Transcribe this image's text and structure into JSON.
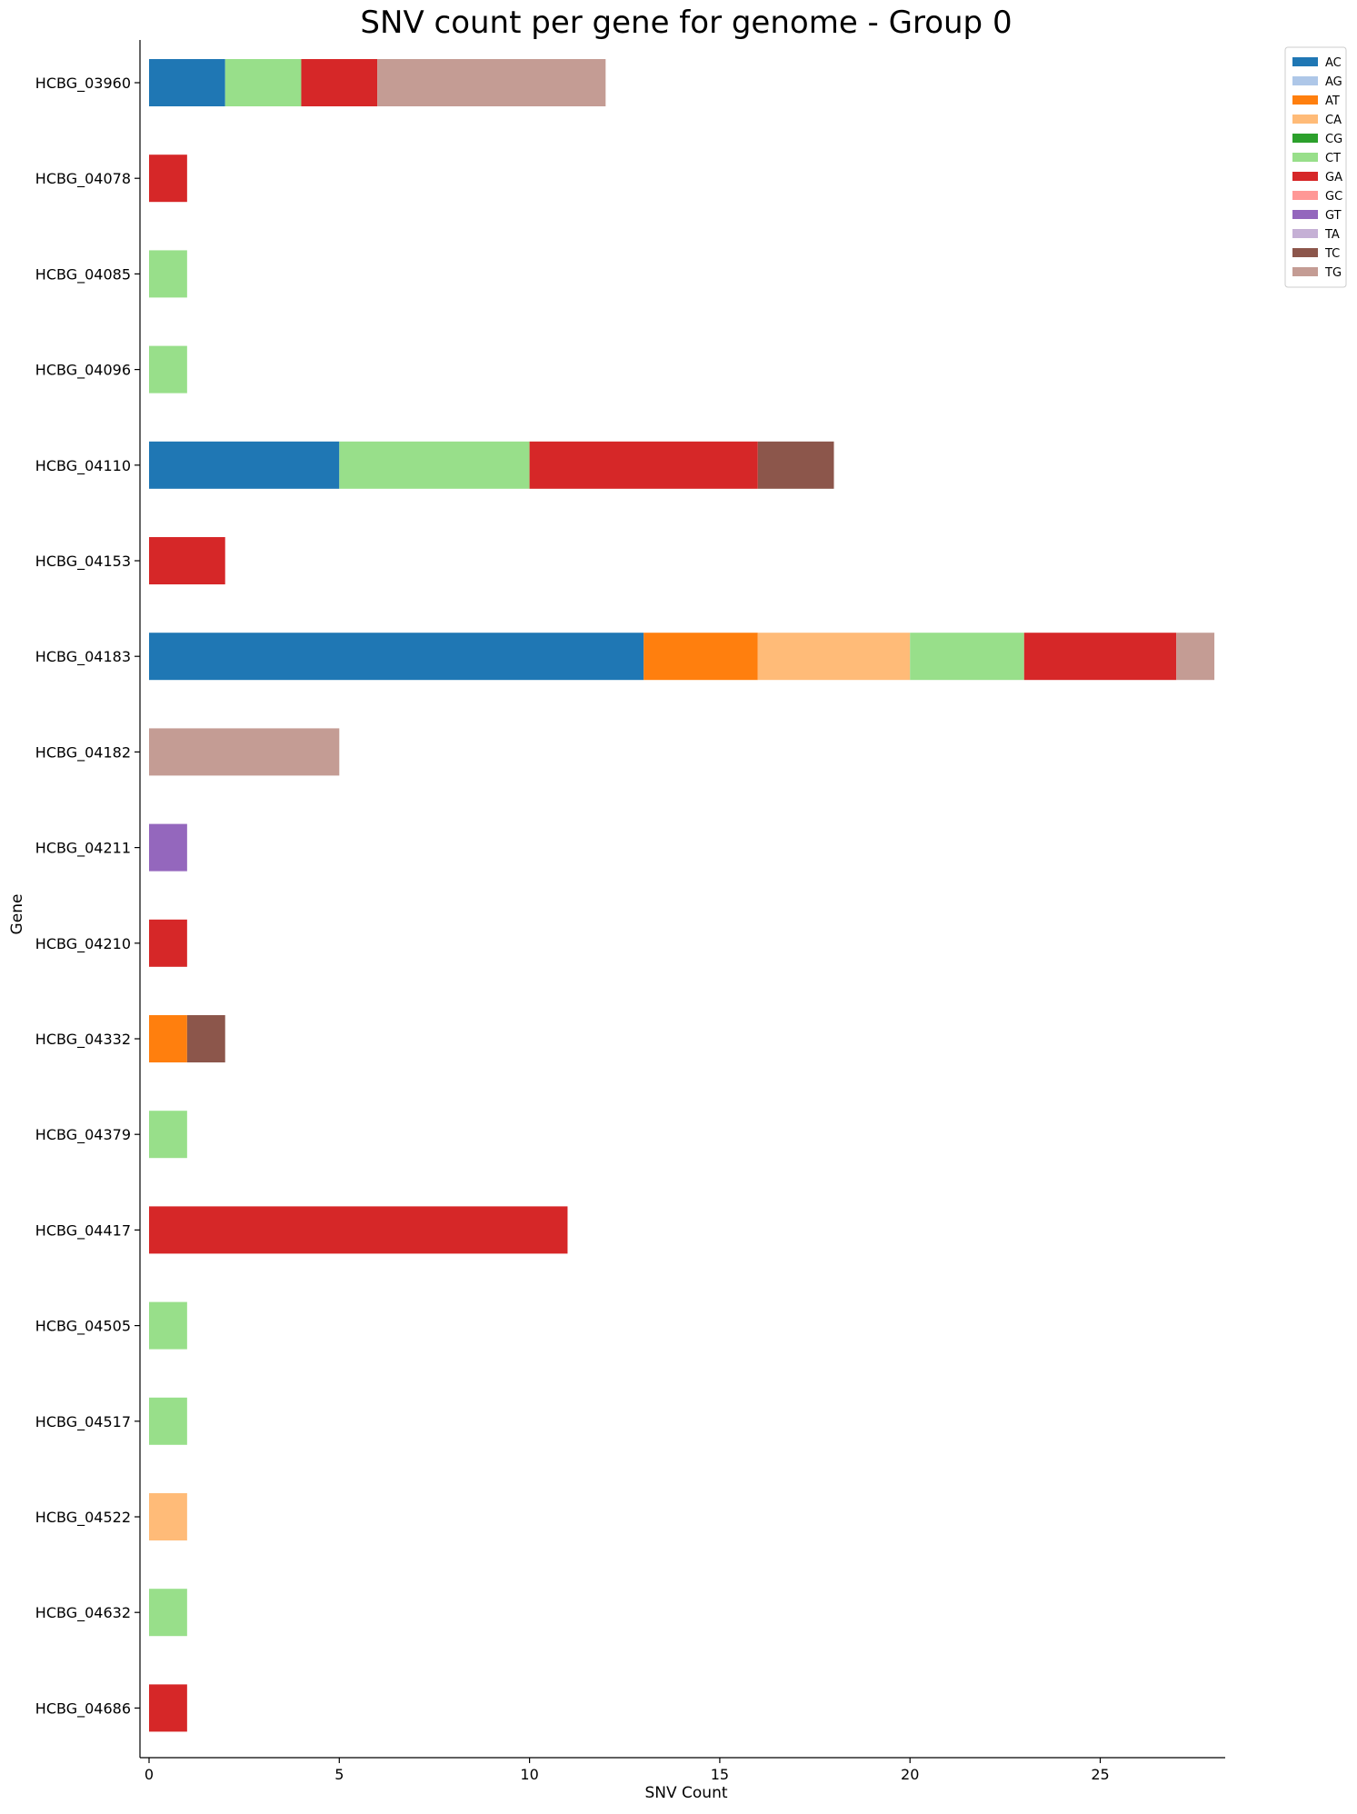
{
  "chart_data": {
    "type": "bar",
    "orientation": "horizontal",
    "stacked": true,
    "title": "SNV count per gene for genome - Group 0",
    "xlabel": "SNV Count",
    "ylabel": "Gene",
    "xlim": [
      0,
      28.3
    ],
    "xticks": [
      0,
      5,
      10,
      15,
      20,
      25
    ],
    "grid": false,
    "legend_position": "top-right",
    "categories": [
      "HCBG_03960",
      "HCBG_04078",
      "HCBG_04085",
      "HCBG_04096",
      "HCBG_04110",
      "HCBG_04153",
      "HCBG_04183",
      "HCBG_04182",
      "HCBG_04211",
      "HCBG_04210",
      "HCBG_04332",
      "HCBG_04379",
      "HCBG_04417",
      "HCBG_04505",
      "HCBG_04517",
      "HCBG_04522",
      "HCBG_04632",
      "HCBG_04686"
    ],
    "series": [
      {
        "name": "AC",
        "color": "#1f77b4",
        "values": [
          2,
          0,
          0,
          0,
          5,
          0,
          13,
          0,
          0,
          0,
          0,
          0,
          0,
          0,
          0,
          0,
          0,
          0
        ]
      },
      {
        "name": "AG",
        "color": "#aec7e8",
        "values": [
          0,
          0,
          0,
          0,
          0,
          0,
          0,
          0,
          0,
          0,
          0,
          0,
          0,
          0,
          0,
          0,
          0,
          0
        ]
      },
      {
        "name": "AT",
        "color": "#ff7f0e",
        "values": [
          0,
          0,
          0,
          0,
          0,
          0,
          3,
          0,
          0,
          0,
          1,
          0,
          0,
          0,
          0,
          0,
          0,
          0
        ]
      },
      {
        "name": "CA",
        "color": "#ffbb78",
        "values": [
          0,
          0,
          0,
          0,
          0,
          0,
          4,
          0,
          0,
          0,
          0,
          0,
          0,
          0,
          0,
          1,
          0,
          0
        ]
      },
      {
        "name": "CG",
        "color": "#2ca02c",
        "values": [
          0,
          0,
          0,
          0,
          0,
          0,
          0,
          0,
          0,
          0,
          0,
          0,
          0,
          0,
          0,
          0,
          0,
          0
        ]
      },
      {
        "name": "CT",
        "color": "#98df8a",
        "values": [
          2,
          0,
          1,
          1,
          5,
          0,
          3,
          0,
          0,
          0,
          0,
          1,
          0,
          1,
          1,
          0,
          1,
          0
        ]
      },
      {
        "name": "GA",
        "color": "#d62728",
        "values": [
          2,
          1,
          0,
          0,
          6,
          2,
          4,
          0,
          0,
          1,
          0,
          0,
          11,
          0,
          0,
          0,
          0,
          1
        ]
      },
      {
        "name": "GC",
        "color": "#ff9896",
        "values": [
          0,
          0,
          0,
          0,
          0,
          0,
          0,
          0,
          0,
          0,
          0,
          0,
          0,
          0,
          0,
          0,
          0,
          0
        ]
      },
      {
        "name": "GT",
        "color": "#9467bd",
        "values": [
          0,
          0,
          0,
          0,
          0,
          0,
          0,
          0,
          1,
          0,
          0,
          0,
          0,
          0,
          0,
          0,
          0,
          0
        ]
      },
      {
        "name": "TA",
        "color": "#c5b0d5",
        "values": [
          0,
          0,
          0,
          0,
          0,
          0,
          0,
          0,
          0,
          0,
          0,
          0,
          0,
          0,
          0,
          0,
          0,
          0
        ]
      },
      {
        "name": "TC",
        "color": "#8c564b",
        "values": [
          0,
          0,
          0,
          0,
          2,
          0,
          0,
          0,
          0,
          0,
          1,
          0,
          0,
          0,
          0,
          0,
          0,
          0
        ]
      },
      {
        "name": "TG",
        "color": "#c49c94",
        "values": [
          6,
          0,
          0,
          0,
          0,
          0,
          1,
          5,
          0,
          0,
          0,
          0,
          0,
          0,
          0,
          0,
          0,
          0
        ]
      }
    ]
  }
}
